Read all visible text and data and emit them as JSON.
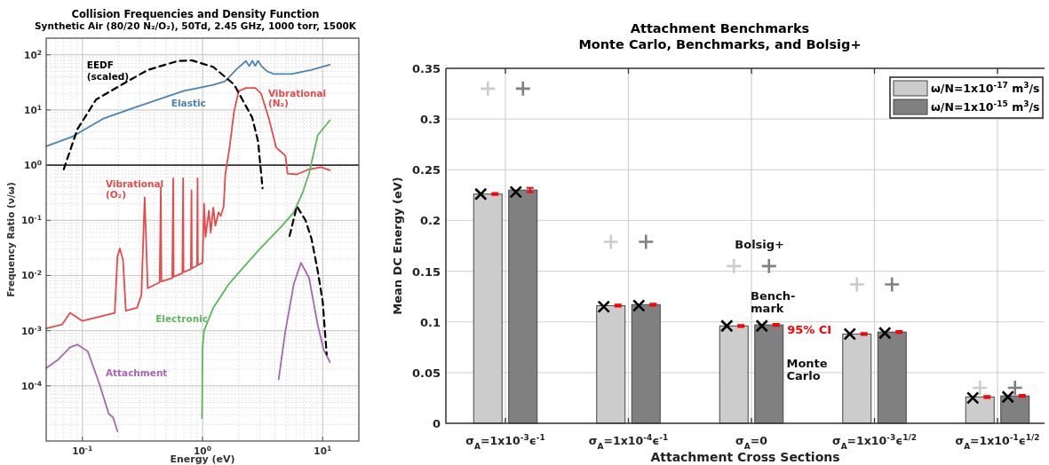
{
  "chart_data": [
    {
      "type": "line",
      "title": "Collision Frequencies and Density Function",
      "subtitle": "Synthetic Air (80/20 N₂/O₂), 50Td, 2.45 GHz, 1000 torr, 1500K",
      "xlabel": "Energy (eV)",
      "ylabel": "Frequency Ratio (ν/ω)",
      "log": "xy",
      "xlim": [
        0.05,
        20
      ],
      "ylim": [
        1e-05,
        200
      ],
      "xticks": [
        {
          "value": 0.1,
          "label": "10$^{-1}$"
        },
        {
          "value": 1,
          "label": "10$^{0}$"
        },
        {
          "value": 10,
          "label": "10$^{1}$"
        }
      ],
      "yticks": [
        {
          "value": 0.0001,
          "label": "10$^{-4}$"
        },
        {
          "value": 0.001,
          "label": "10$^{-3}$"
        },
        {
          "value": 0.01,
          "label": "10$^{-2}$"
        },
        {
          "value": 0.1,
          "label": "10$^{-1}$"
        },
        {
          "value": 1,
          "label": "10$^{0}$"
        },
        {
          "value": 10,
          "label": "10$^{1}$"
        },
        {
          "value": 100,
          "label": "10$^{2}$"
        }
      ],
      "grid": true,
      "legend": false,
      "marker": "none",
      "ref_lines": [
        {
          "axis": "y",
          "value": 1,
          "color": "#333333"
        }
      ],
      "annotations": [
        "Vibrational (O₂)",
        "Vibrational (N₂)"
      ],
      "series": [
        {
          "name": "Elastic",
          "color": "#4a84b5",
          "x": [
            0.05,
            0.083,
            0.148,
            0.26,
            0.69,
            1.23,
            1.54,
            1.94,
            2.3,
            2.45,
            2.6,
            2.75,
            2.9,
            3.1,
            3.45,
            3.9,
            5.5,
            8,
            11.5
          ],
          "values": [
            2.2,
            3.3,
            6.9,
            10.7,
            22,
            28.6,
            33,
            56,
            77,
            62,
            78,
            63,
            78,
            62,
            50,
            45,
            45,
            53,
            66
          ]
        },
        {
          "color": "#e84a4a",
          "x": [
            0.05,
            0.068,
            0.079,
            0.1,
            0.186,
            0.196,
            0.205,
            0.218,
            0.23,
            0.285,
            0.31,
            0.33,
            0.35,
            0.44,
            0.45,
            0.455,
            0.56,
            0.57,
            0.575,
            0.68,
            0.69,
            0.695,
            0.8,
            0.81,
            0.815,
            0.9,
            0.91,
            0.915,
            1.0,
            1.03,
            1.06,
            1.13,
            1.17,
            1.23,
            1.28,
            1.36,
            1.42,
            1.5,
            1.55,
            1.68,
            1.83,
            2.0,
            2.3,
            2.74,
            3.07,
            3.55,
            4.1,
            4.9,
            5.1,
            6.1,
            7.7,
            9.7,
            11.5
          ],
          "values": [
            0.0011,
            0.0013,
            0.0021,
            0.0015,
            0.0021,
            0.022,
            0.031,
            0.019,
            0.0023,
            0.0026,
            0.0044,
            0.26,
            0.0059,
            0.0075,
            0.4,
            0.0078,
            0.009,
            0.58,
            0.0095,
            0.011,
            0.58,
            0.0115,
            0.013,
            0.35,
            0.0135,
            0.015,
            0.58,
            0.0155,
            0.017,
            0.2,
            0.05,
            0.15,
            0.06,
            0.17,
            0.08,
            0.14,
            0.12,
            0.18,
            0.7,
            2.1,
            9.4,
            22,
            25,
            25,
            20,
            7.3,
            2.1,
            1.47,
            0.7,
            0.68,
            0.84,
            0.92,
            0.81
          ]
        },
        {
          "name": "Electronic",
          "color": "#5cb85c",
          "x": [
            0.99,
            1.0,
            1.03,
            1.23,
            1.64,
            1.94,
            2.9,
            4.6,
            5.76,
            6.85,
            7.7,
            9.1,
            11.5
          ],
          "values": [
            2.6e-05,
            0.00047,
            0.001,
            0.0026,
            0.0068,
            0.0104,
            0.028,
            0.08,
            0.14,
            0.33,
            0.7,
            3.5,
            6.5
          ]
        },
        {
          "name": "Attachment",
          "color": "#a864b8",
          "x": [
            0.05,
            0.063,
            0.079,
            0.091,
            0.111,
            0.139,
            0.166,
            0.18,
            0.196,
            1.0,
            4.3,
            4.9,
            5.76,
            6.6,
            7.7,
            9.1,
            10.2,
            11.5
          ],
          "values": [
            0.00021,
            0.0003,
            0.0005,
            0.00056,
            0.00042,
            0.000107,
            3.1e-05,
            2.7e-05,
            1.5e-05,
            null,
            0.00013,
            0.001,
            0.0071,
            0.017,
            0.0091,
            0.00126,
            0.00045,
            0.00027
          ]
        },
        {
          "name": "EEDF (scaled)",
          "color": "#000000",
          "line_style": "dashed",
          "x": [
            0.07,
            0.091,
            0.13,
            0.22,
            0.35,
            0.62,
            0.82,
            1.23,
            1.83,
            2.59,
            2.9,
            3.16,
            4.2,
            5.3,
            6.1,
            7.2,
            8.1,
            9.1,
            10,
            10.8
          ],
          "values": [
            0.84,
            4.5,
            15.4,
            30,
            53,
            77,
            79,
            60,
            29,
            7.3,
            2.7,
            0.38,
            null,
            0.052,
            0.18,
            0.1,
            0.045,
            0.012,
            0.0034,
            0.00037
          ]
        }
      ]
    },
    {
      "type": "bar",
      "title": "Attachment Benchmarks",
      "subtitle": "Monte Carlo, Benchmarks, and Bolsig+",
      "xlabel": "Attachment Cross Sections",
      "ylabel": "Mean DC Energy (eV)",
      "categories": [
        "σ$_{A}$=1x10$^{-3}$ϵ$^{-1}$",
        "σ$_{A}$=1x10$^{-4}$ϵ$^{-1}$",
        "σ$_{A}$=0",
        "σ$_{A}$=1x10$^{-3}$ϵ$^{1/2}$",
        "σ$_{A}$=1x10$^{-1}$ϵ$^{1/2}$"
      ],
      "ylim": [
        0,
        0.35
      ],
      "yticks": [
        0,
        0.05,
        0.1,
        0.15,
        0.2,
        0.25,
        0.3,
        0.35
      ],
      "grid": true,
      "legend": "top right",
      "annotations": [
        "Bolsig+",
        "Bench-mark",
        "95% CI",
        "Monte Carlo"
      ],
      "series": [
        {
          "name": "ω/N=1x10$^{-17}$ m$^{3}$/s",
          "color": "#cccccc",
          "values": [
            0.226,
            0.116,
            0.096,
            0.088,
            0.026
          ],
          "errors": [
            0.001,
            0.001,
            0.001,
            0.001,
            0.001
          ]
        },
        {
          "name": "ω/N=1x10$^{-15}$ m$^{3}$/s",
          "color": "#808080",
          "values": [
            0.23,
            0.117,
            0.097,
            0.09,
            0.027
          ],
          "errors": [
            0.002,
            0.001,
            0.001,
            0.001,
            0.001
          ]
        },
        {
          "type": "scatter",
          "color": "#000000",
          "marker": "cross",
          "x": [
            "σ$_{A}$=1x10$^{-3}$ϵ$^{-1}$",
            "σ$_{A}$=1x10$^{-4}$ϵ$^{-1}$",
            "σ$_{A}$=0",
            "σ$_{A}$=1x10$^{-3}$ϵ$^{1/2}$",
            "σ$_{A}$=1x10$^{-1}$ϵ$^{1/2}$"
          ],
          "values": [
            0.226,
            0.115,
            0.096,
            0.088,
            0.025
          ]
        },
        {
          "type": "scatter",
          "color": "#000000",
          "marker": "cross",
          "x": [
            "σ$_{A}$=1x10$^{-3}$ϵ$^{-1}$",
            "σ$_{A}$=1x10$^{-4}$ϵ$^{-1}$",
            "σ$_{A}$=0",
            "σ$_{A}$=1x10$^{-3}$ϵ$^{1/2}$",
            "σ$_{A}$=1x10$^{-1}$ϵ$^{1/2}$"
          ],
          "values": [
            0.228,
            0.116,
            0.096,
            0.089,
            0.026
          ]
        },
        {
          "type": "scatter",
          "color": "#cccccc",
          "marker": "plus",
          "x": [
            "σ$_{A}$=1x10$^{-3}$ϵ$^{-1}$",
            "σ$_{A}$=1x10$^{-4}$ϵ$^{-1}$",
            "σ$_{A}$=0",
            "σ$_{A}$=1x10$^{-3}$ϵ$^{1/2}$",
            "σ$_{A}$=1x10$^{-1}$ϵ$^{1/2}$"
          ],
          "values": [
            0.33,
            0.179,
            0.155,
            0.137,
            0.035
          ]
        },
        {
          "type": "scatter",
          "color": "#808080",
          "marker": "plus",
          "x": [
            "σ$_{A}$=1x10$^{-3}$ϵ$^{-1}$",
            "σ$_{A}$=1x10$^{-4}$ϵ$^{-1}$",
            "σ$_{A}$=0",
            "σ$_{A}$=1x10$^{-3}$ϵ$^{1/2}$",
            "σ$_{A}$=1x10$^{-1}$ϵ$^{1/2}$"
          ],
          "values": [
            0.33,
            0.179,
            0.155,
            0.137,
            0.035
          ]
        }
      ]
    }
  ]
}
